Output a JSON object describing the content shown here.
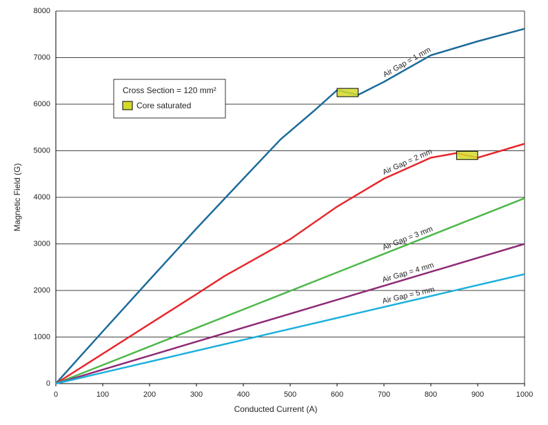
{
  "chart_data": {
    "type": "line",
    "xlabel": "Conducted Current (A)",
    "ylabel": "Magnetic Field (G)",
    "xlim": [
      0,
      1000
    ],
    "xticks": [
      0,
      100,
      200,
      300,
      400,
      500,
      600,
      700,
      800,
      900,
      1000
    ],
    "ylim": [
      0,
      8000
    ],
    "yticks": [
      0,
      1000,
      2000,
      3000,
      4000,
      5000,
      6000,
      7000,
      8000
    ],
    "grid": true,
    "legend_title": "Cross Section = 120 mm²",
    "saturation_label": "Core saturated",
    "saturation_color": "#d4d92a",
    "saturation_boxes": [
      {
        "x": [
          600,
          645
        ],
        "y": 6250
      },
      {
        "x": [
          855,
          900
        ],
        "y": 4900
      }
    ],
    "series": [
      {
        "name": "Air Gap = 1 mm",
        "color": "#1c6b9a",
        "x": [
          0,
          100,
          200,
          300,
          400,
          480,
          550,
          600,
          645,
          700,
          800,
          900,
          1000
        ],
        "values": [
          0,
          1120,
          2230,
          3330,
          4400,
          5250,
          5850,
          6300,
          6200,
          6480,
          7050,
          7350,
          7620
        ]
      },
      {
        "name": "Air Gap = 2 mm",
        "color": "#e8262b",
        "x": [
          0,
          100,
          200,
          300,
          360,
          500,
          600,
          700,
          800,
          855,
          900,
          1000
        ],
        "values": [
          0,
          640,
          1280,
          1920,
          2310,
          3100,
          3800,
          4400,
          4850,
          4950,
          4850,
          5150
        ]
      },
      {
        "name": "Air Gap = 3 mm",
        "color": "#4cb848",
        "x": [
          0,
          1000
        ],
        "values": [
          0,
          3980
        ]
      },
      {
        "name": "Air Gap = 4 mm",
        "color": "#8e2a76",
        "x": [
          0,
          1000
        ],
        "values": [
          0,
          3000
        ]
      },
      {
        "name": "Air Gap = 5 mm",
        "color": "#1cb0dc",
        "x": [
          0,
          1000
        ],
        "values": [
          0,
          2350
        ]
      }
    ]
  }
}
